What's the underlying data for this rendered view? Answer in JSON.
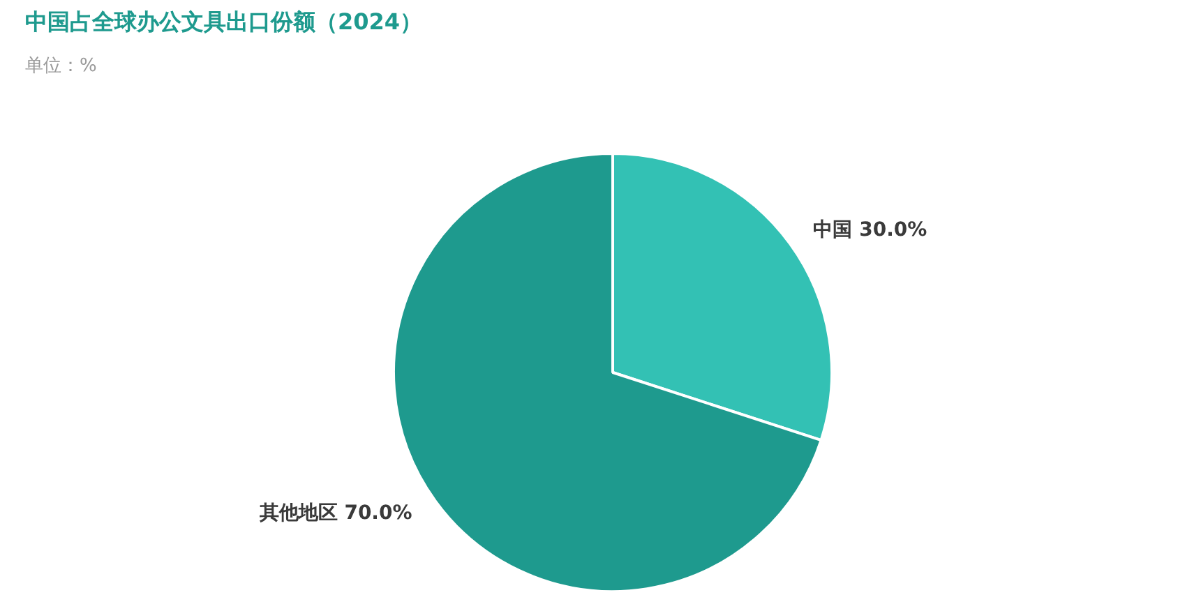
{
  "chart_data": {
    "type": "pie",
    "title": "中国占全球办公文具出口份额（2024）",
    "subtitle": "单位：%",
    "categories": [
      "中国",
      "其他地区"
    ],
    "values": [
      30,
      70
    ],
    "value_labels": [
      "30.0%",
      "70.0%"
    ],
    "colors": [
      "#33c1b4",
      "#1e9a8e"
    ],
    "legend": false
  }
}
